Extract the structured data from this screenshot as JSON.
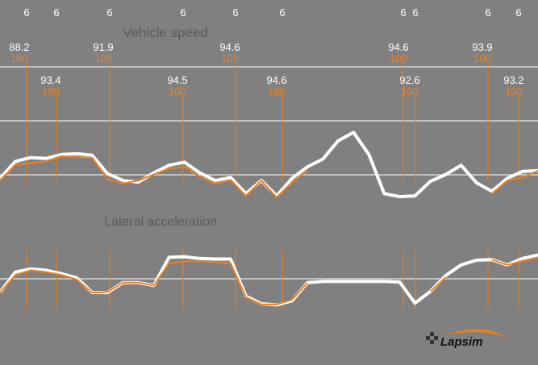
{
  "colors": {
    "background": "#808080",
    "reference_trace": "#ffffff",
    "current_trace": "#f07f1a",
    "marker_line": "#f07f1a",
    "gridline": "#ffffff",
    "value_label": "#ffffff",
    "sublabel": "#f07f1a"
  },
  "logo": {
    "text": "Lapsim",
    "icon": "checkered-flag-icon"
  },
  "chart_data": {
    "type": "line",
    "gridlines": true,
    "markers": [
      {
        "gear": "6",
        "value": "88.2",
        "pct": "100"
      },
      {
        "gear": "6",
        "value": "93.4",
        "pct": "100"
      },
      {
        "gear": "6",
        "value": "91.9",
        "pct": "100"
      },
      {
        "gear": "6",
        "value": "94.5",
        "pct": "100"
      },
      {
        "gear": "6",
        "value": "94.6",
        "pct": "100"
      },
      {
        "gear": "6",
        "value": "94.6",
        "pct": "100"
      },
      {
        "gear": "6",
        "value": "94.6",
        "pct": "100"
      },
      {
        "gear": "6",
        "value": "92.6",
        "pct": "100"
      },
      {
        "gear": "6",
        "value": "93.9",
        "pct": "100"
      },
      {
        "gear": "6",
        "value": "93.2",
        "pct": "100"
      }
    ],
    "panels": [
      {
        "title": "Vehicle speed",
        "series": [
          {
            "key": "reference",
            "values": [
              0.25,
              0.47,
              0.52,
              0.51,
              0.56,
              0.57,
              0.55,
              0.31,
              0.22,
              0.2,
              0.32,
              0.42,
              0.46,
              0.32,
              0.22,
              0.26,
              0.05,
              0.22,
              0.02,
              0.25,
              0.4,
              0.5,
              0.74,
              0.85,
              0.56,
              0.05,
              0.01,
              0.02,
              0.21,
              0.3,
              0.42,
              0.19,
              0.08,
              0.25,
              0.34,
              0.35
            ]
          },
          {
            "key": "current",
            "values": [
              0.22,
              0.43,
              0.45,
              0.47,
              0.54,
              0.53,
              0.52,
              0.24,
              0.18,
              0.22,
              0.3,
              0.38,
              0.4,
              0.27,
              0.18,
              0.23,
              0.02,
              0.22,
              0.0,
              0.2,
              0.35,
              null,
              null,
              null,
              null,
              null,
              null,
              0.0,
              null,
              null,
              null,
              null,
              0.05,
              0.22,
              0.26,
              0.35
            ]
          }
        ]
      },
      {
        "title": "Lateral acceleration",
        "series": [
          {
            "key": "reference",
            "values": [
              0.3,
              0.65,
              0.7,
              0.68,
              0.62,
              0.55,
              0.3,
              0.3,
              0.47,
              0.47,
              0.42,
              0.9,
              0.91,
              0.88,
              0.87,
              0.87,
              0.24,
              0.11,
              0.09,
              0.16,
              0.47,
              0.49,
              0.49,
              0.49,
              0.49,
              0.49,
              0.48,
              0.12,
              0.32,
              0.59,
              0.77,
              0.85,
              0.86,
              0.77,
              0.88,
              0.94
            ]
          },
          {
            "key": "current",
            "values": [
              0.3,
              0.6,
              0.68,
              0.65,
              0.6,
              0.52,
              0.3,
              0.31,
              0.47,
              0.47,
              0.42,
              0.8,
              0.83,
              0.83,
              0.82,
              0.8,
              0.22,
              0.1,
              0.1,
              0.18,
              0.47,
              null,
              null,
              null,
              null,
              null,
              null,
              null,
              0.32,
              0.56,
              null,
              null,
              0.86,
              0.77,
              0.84,
              0.9
            ]
          }
        ]
      }
    ]
  }
}
